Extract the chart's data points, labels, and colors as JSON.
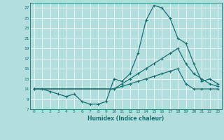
{
  "xlabel": "Humidex (Indice chaleur)",
  "bg_color": "#b2dede",
  "grid_color": "#c8e8e8",
  "line_color": "#1a7070",
  "xlim": [
    -0.5,
    23.5
  ],
  "ylim": [
    7,
    28
  ],
  "yticks": [
    7,
    9,
    11,
    13,
    15,
    17,
    19,
    21,
    23,
    25,
    27
  ],
  "xticks": [
    0,
    1,
    2,
    3,
    4,
    5,
    6,
    7,
    8,
    9,
    10,
    11,
    12,
    13,
    14,
    15,
    16,
    17,
    18,
    19,
    20,
    21,
    22,
    23
  ],
  "line1_x": [
    0,
    1,
    2,
    3,
    4,
    5,
    6,
    7,
    8,
    9,
    10,
    11,
    12,
    13,
    14,
    15,
    16,
    17,
    18,
    19,
    20,
    21,
    22,
    23
  ],
  "line1_y": [
    11,
    11,
    10.5,
    10,
    9.5,
    10,
    8.5,
    8,
    8,
    8.5,
    13,
    12.5,
    14,
    18,
    24.5,
    27.5,
    27,
    25,
    21,
    20,
    16,
    12.5,
    13,
    12
  ],
  "line2_x": [
    0,
    10,
    11,
    12,
    13,
    14,
    15,
    16,
    17,
    18,
    19,
    20,
    21,
    22,
    23
  ],
  "line2_y": [
    11,
    11,
    11.5,
    12,
    12.5,
    13,
    13.5,
    14,
    14.5,
    15,
    12,
    11,
    11,
    11,
    11
  ],
  "line3_x": [
    0,
    10,
    11,
    12,
    13,
    14,
    15,
    16,
    17,
    18,
    19,
    20,
    21,
    22,
    23
  ],
  "line3_y": [
    11,
    11,
    12,
    13,
    14,
    15,
    16,
    17,
    18,
    19,
    16,
    14,
    13,
    12,
    11.5
  ]
}
